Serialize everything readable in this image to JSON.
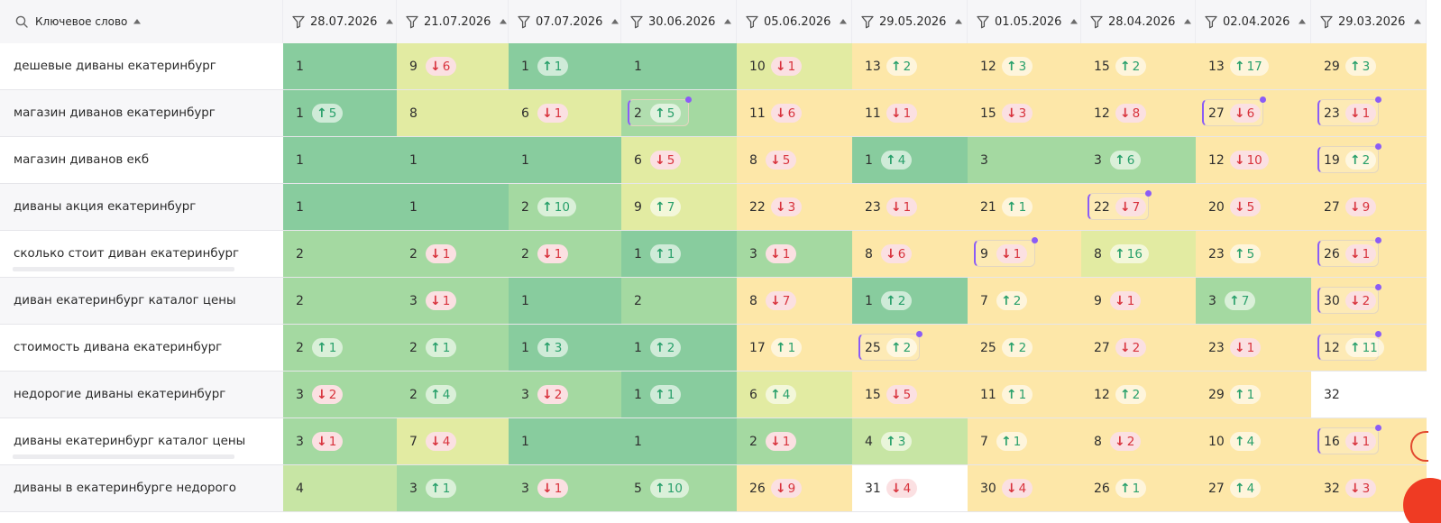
{
  "header": {
    "keyword_label": "Ключевое слово",
    "dates": [
      "28.07.2026",
      "21.07.2026",
      "07.07.2026",
      "30.06.2026",
      "05.06.2026",
      "29.05.2026",
      "01.05.2026",
      "28.04.2026",
      "02.04.2026",
      "29.03.2026"
    ]
  },
  "colors": {
    "dark_green": "#88cc9e",
    "mid_green": "#a4d9a1",
    "light_green": "#c7e5a4",
    "yellow_green": "#e2eba2",
    "yellow": "#fde7a8",
    "white": "#ffffff",
    "up_text": "#29a06b",
    "down_text": "#d8323c",
    "marker": "#8b5cf6"
  },
  "rows": [
    {
      "keyword": "дешевые диваны екатеринбург",
      "cells": [
        {
          "p": "1",
          "c": "dark_green"
        },
        {
          "p": "9",
          "d": "down",
          "n": "6",
          "c": "yellow_green"
        },
        {
          "p": "1",
          "d": "up",
          "n": "1",
          "c": "dark_green"
        },
        {
          "p": "1",
          "c": "dark_green"
        },
        {
          "p": "10",
          "d": "down",
          "n": "1",
          "c": "yellow_green"
        },
        {
          "p": "13",
          "d": "up",
          "n": "2",
          "c": "yellow"
        },
        {
          "p": "12",
          "d": "up",
          "n": "3",
          "c": "yellow"
        },
        {
          "p": "15",
          "d": "up",
          "n": "2",
          "c": "yellow"
        },
        {
          "p": "13",
          "d": "up",
          "n": "17",
          "c": "yellow"
        },
        {
          "p": "29",
          "d": "up",
          "n": "3",
          "c": "yellow"
        }
      ]
    },
    {
      "keyword": "магазин диванов екатеринбург",
      "cells": [
        {
          "p": "1",
          "d": "up",
          "n": "5",
          "c": "dark_green"
        },
        {
          "p": "8",
          "c": "yellow_green"
        },
        {
          "p": "6",
          "d": "down",
          "n": "1",
          "c": "yellow_green"
        },
        {
          "p": "2",
          "d": "up",
          "n": "5",
          "c": "mid_green",
          "m": true
        },
        {
          "p": "11",
          "d": "down",
          "n": "6",
          "c": "yellow"
        },
        {
          "p": "11",
          "d": "down",
          "n": "1",
          "c": "yellow"
        },
        {
          "p": "15",
          "d": "down",
          "n": "3",
          "c": "yellow"
        },
        {
          "p": "12",
          "d": "down",
          "n": "8",
          "c": "yellow"
        },
        {
          "p": "27",
          "d": "down",
          "n": "6",
          "c": "yellow",
          "m": true
        },
        {
          "p": "23",
          "d": "down",
          "n": "1",
          "c": "yellow",
          "m": true
        }
      ]
    },
    {
      "keyword": "магазин диванов екб",
      "cells": [
        {
          "p": "1",
          "c": "dark_green"
        },
        {
          "p": "1",
          "c": "dark_green"
        },
        {
          "p": "1",
          "c": "dark_green"
        },
        {
          "p": "6",
          "d": "down",
          "n": "5",
          "c": "yellow_green"
        },
        {
          "p": "8",
          "d": "down",
          "n": "5",
          "c": "yellow"
        },
        {
          "p": "1",
          "d": "up",
          "n": "4",
          "c": "dark_green"
        },
        {
          "p": "3",
          "c": "mid_green"
        },
        {
          "p": "3",
          "d": "up",
          "n": "6",
          "c": "mid_green"
        },
        {
          "p": "12",
          "d": "down",
          "n": "10",
          "c": "yellow"
        },
        {
          "p": "19",
          "d": "up",
          "n": "2",
          "c": "yellow",
          "m": true
        }
      ]
    },
    {
      "keyword": "диваны акция екатеринбург",
      "cells": [
        {
          "p": "1",
          "c": "dark_green"
        },
        {
          "p": "1",
          "c": "dark_green"
        },
        {
          "p": "2",
          "d": "up",
          "n": "10",
          "c": "mid_green"
        },
        {
          "p": "9",
          "d": "up",
          "n": "7",
          "c": "yellow_green"
        },
        {
          "p": "22",
          "d": "down",
          "n": "3",
          "c": "yellow"
        },
        {
          "p": "23",
          "d": "down",
          "n": "1",
          "c": "yellow"
        },
        {
          "p": "21",
          "d": "up",
          "n": "1",
          "c": "yellow"
        },
        {
          "p": "22",
          "d": "down",
          "n": "7",
          "c": "yellow",
          "m": true
        },
        {
          "p": "20",
          "d": "down",
          "n": "5",
          "c": "yellow"
        },
        {
          "p": "27",
          "d": "down",
          "n": "9",
          "c": "yellow"
        }
      ]
    },
    {
      "keyword": "сколько стоит диван екатеринбург",
      "u": true,
      "cells": [
        {
          "p": "2",
          "c": "mid_green"
        },
        {
          "p": "2",
          "d": "down",
          "n": "1",
          "c": "mid_green"
        },
        {
          "p": "2",
          "d": "down",
          "n": "1",
          "c": "mid_green"
        },
        {
          "p": "1",
          "d": "up",
          "n": "1",
          "c": "dark_green"
        },
        {
          "p": "3",
          "d": "down",
          "n": "1",
          "c": "mid_green"
        },
        {
          "p": "8",
          "d": "down",
          "n": "6",
          "c": "yellow"
        },
        {
          "p": "9",
          "d": "down",
          "n": "1",
          "c": "yellow",
          "m": true
        },
        {
          "p": "8",
          "d": "up",
          "n": "16",
          "c": "yellow_green"
        },
        {
          "p": "23",
          "d": "up",
          "n": "5",
          "c": "yellow"
        },
        {
          "p": "26",
          "d": "down",
          "n": "1",
          "c": "yellow",
          "m": true
        }
      ]
    },
    {
      "keyword": "диван екатеринбург каталог цены",
      "cells": [
        {
          "p": "2",
          "c": "mid_green"
        },
        {
          "p": "3",
          "d": "down",
          "n": "1",
          "c": "mid_green"
        },
        {
          "p": "1",
          "c": "dark_green"
        },
        {
          "p": "2",
          "c": "mid_green"
        },
        {
          "p": "8",
          "d": "down",
          "n": "7",
          "c": "yellow"
        },
        {
          "p": "1",
          "d": "up",
          "n": "2",
          "c": "dark_green"
        },
        {
          "p": "7",
          "d": "up",
          "n": "2",
          "c": "yellow"
        },
        {
          "p": "9",
          "d": "down",
          "n": "1",
          "c": "yellow"
        },
        {
          "p": "3",
          "d": "up",
          "n": "7",
          "c": "mid_green"
        },
        {
          "p": "30",
          "d": "down",
          "n": "2",
          "c": "yellow",
          "m": true
        }
      ]
    },
    {
      "keyword": "стоимость дивана екатеринбург",
      "cells": [
        {
          "p": "2",
          "d": "up",
          "n": "1",
          "c": "mid_green"
        },
        {
          "p": "2",
          "d": "up",
          "n": "1",
          "c": "mid_green"
        },
        {
          "p": "1",
          "d": "up",
          "n": "3",
          "c": "dark_green"
        },
        {
          "p": "1",
          "d": "up",
          "n": "2",
          "c": "dark_green"
        },
        {
          "p": "17",
          "d": "up",
          "n": "1",
          "c": "yellow"
        },
        {
          "p": "25",
          "d": "up",
          "n": "2",
          "c": "yellow",
          "m": true
        },
        {
          "p": "25",
          "d": "up",
          "n": "2",
          "c": "yellow"
        },
        {
          "p": "27",
          "d": "down",
          "n": "2",
          "c": "yellow"
        },
        {
          "p": "23",
          "d": "down",
          "n": "1",
          "c": "yellow"
        },
        {
          "p": "12",
          "d": "up",
          "n": "11",
          "c": "yellow",
          "m": true
        }
      ]
    },
    {
      "keyword": "недорогие диваны екатеринбург",
      "cells": [
        {
          "p": "3",
          "d": "down",
          "n": "2",
          "c": "mid_green"
        },
        {
          "p": "2",
          "d": "up",
          "n": "4",
          "c": "mid_green"
        },
        {
          "p": "3",
          "d": "down",
          "n": "2",
          "c": "mid_green"
        },
        {
          "p": "1",
          "d": "up",
          "n": "1",
          "c": "dark_green"
        },
        {
          "p": "6",
          "d": "up",
          "n": "4",
          "c": "yellow_green"
        },
        {
          "p": "15",
          "d": "down",
          "n": "5",
          "c": "yellow"
        },
        {
          "p": "11",
          "d": "up",
          "n": "1",
          "c": "yellow"
        },
        {
          "p": "12",
          "d": "up",
          "n": "2",
          "c": "yellow"
        },
        {
          "p": "29",
          "d": "up",
          "n": "1",
          "c": "yellow"
        },
        {
          "p": "32",
          "c": "white"
        }
      ]
    },
    {
      "keyword": "диваны екатеринбург каталог цены",
      "u": true,
      "cells": [
        {
          "p": "3",
          "d": "down",
          "n": "1",
          "c": "mid_green"
        },
        {
          "p": "7",
          "d": "down",
          "n": "4",
          "c": "yellow_green"
        },
        {
          "p": "1",
          "c": "dark_green"
        },
        {
          "p": "1",
          "c": "dark_green"
        },
        {
          "p": "2",
          "d": "down",
          "n": "1",
          "c": "mid_green"
        },
        {
          "p": "4",
          "d": "up",
          "n": "3",
          "c": "light_green"
        },
        {
          "p": "7",
          "d": "up",
          "n": "1",
          "c": "yellow"
        },
        {
          "p": "8",
          "d": "down",
          "n": "2",
          "c": "yellow"
        },
        {
          "p": "10",
          "d": "up",
          "n": "4",
          "c": "yellow"
        },
        {
          "p": "16",
          "d": "down",
          "n": "1",
          "c": "yellow",
          "m": true
        }
      ]
    },
    {
      "keyword": "диваны в екатеринбурге недорого",
      "cells": [
        {
          "p": "4",
          "c": "light_green"
        },
        {
          "p": "3",
          "d": "up",
          "n": "1",
          "c": "mid_green"
        },
        {
          "p": "3",
          "d": "down",
          "n": "1",
          "c": "mid_green"
        },
        {
          "p": "5",
          "d": "up",
          "n": "10",
          "c": "mid_green"
        },
        {
          "p": "26",
          "d": "down",
          "n": "9",
          "c": "yellow"
        },
        {
          "p": "31",
          "d": "down",
          "n": "4",
          "c": "white"
        },
        {
          "p": "30",
          "d": "down",
          "n": "4",
          "c": "yellow"
        },
        {
          "p": "26",
          "d": "up",
          "n": "1",
          "c": "yellow"
        },
        {
          "p": "27",
          "d": "up",
          "n": "4",
          "c": "yellow"
        },
        {
          "p": "32",
          "d": "down",
          "n": "3",
          "c": "yellow"
        }
      ]
    }
  ]
}
